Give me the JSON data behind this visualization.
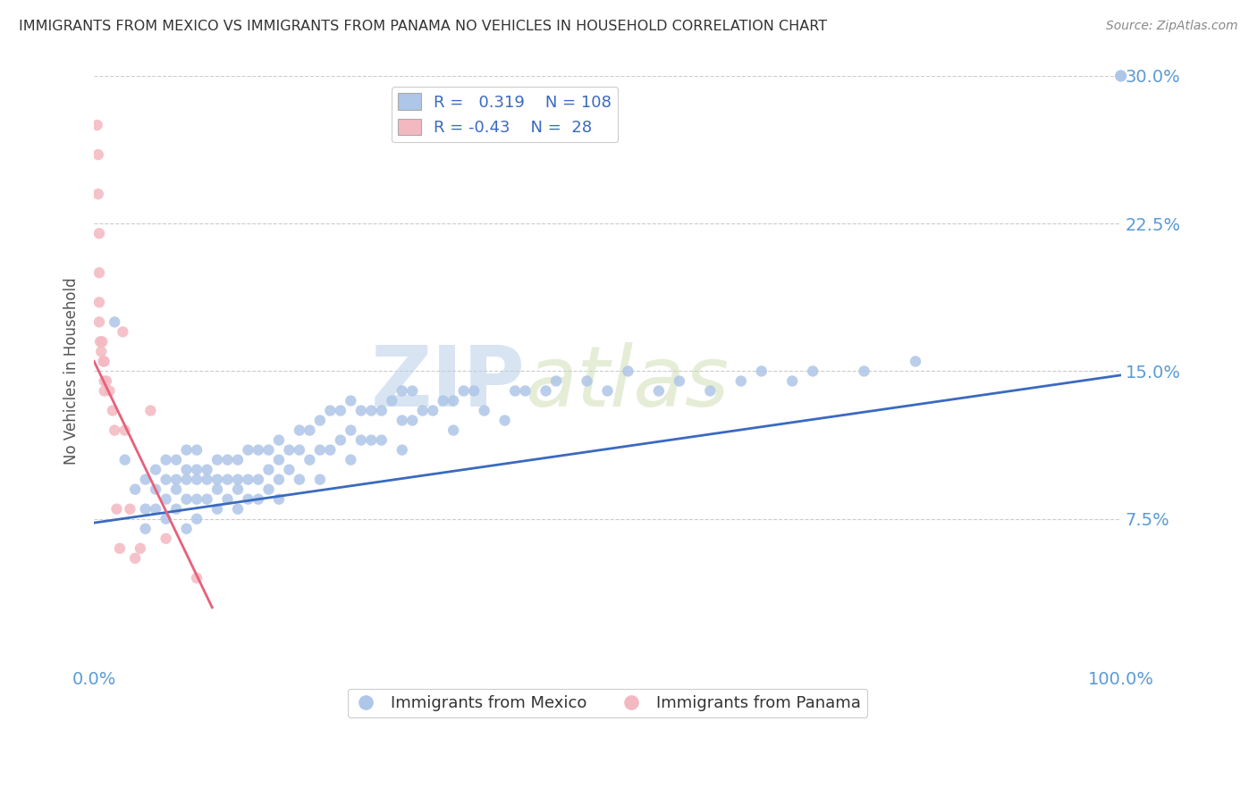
{
  "title": "IMMIGRANTS FROM MEXICO VS IMMIGRANTS FROM PANAMA NO VEHICLES IN HOUSEHOLD CORRELATION CHART",
  "source": "Source: ZipAtlas.com",
  "ylabel": "No Vehicles in Household",
  "xlim": [
    0,
    1.0
  ],
  "ylim": [
    0,
    0.3
  ],
  "yticks": [
    0.075,
    0.15,
    0.225,
    0.3
  ],
  "ytick_labels": [
    "7.5%",
    "15.0%",
    "22.5%",
    "30.0%"
  ],
  "xticks": [
    0.0,
    0.2,
    0.4,
    0.6,
    0.8,
    1.0
  ],
  "xtick_labels": [
    "0.0%",
    "",
    "",
    "",
    "",
    "100.0%"
  ],
  "mexico_R": 0.319,
  "mexico_N": 108,
  "panama_R": -0.43,
  "panama_N": 28,
  "mexico_color": "#aec6e8",
  "panama_color": "#f4b8c1",
  "mexico_line_color": "#3a6abf",
  "panama_line_color": "#e8607a",
  "grid_color": "#cccccc",
  "axis_label_color": "#5b9bd5",
  "title_color": "#333333",
  "watermark_zip": "ZIP",
  "watermark_atlas": "atlas",
  "mexico_x": [
    0.02,
    0.03,
    0.04,
    0.05,
    0.05,
    0.05,
    0.06,
    0.06,
    0.06,
    0.07,
    0.07,
    0.07,
    0.07,
    0.08,
    0.08,
    0.08,
    0.08,
    0.09,
    0.09,
    0.09,
    0.09,
    0.09,
    0.1,
    0.1,
    0.1,
    0.1,
    0.1,
    0.11,
    0.11,
    0.11,
    0.12,
    0.12,
    0.12,
    0.12,
    0.13,
    0.13,
    0.13,
    0.14,
    0.14,
    0.14,
    0.14,
    0.15,
    0.15,
    0.15,
    0.16,
    0.16,
    0.16,
    0.17,
    0.17,
    0.17,
    0.18,
    0.18,
    0.18,
    0.18,
    0.19,
    0.19,
    0.2,
    0.2,
    0.2,
    0.21,
    0.21,
    0.22,
    0.22,
    0.22,
    0.23,
    0.23,
    0.24,
    0.24,
    0.25,
    0.25,
    0.25,
    0.26,
    0.26,
    0.27,
    0.27,
    0.28,
    0.28,
    0.29,
    0.3,
    0.3,
    0.3,
    0.31,
    0.31,
    0.32,
    0.33,
    0.34,
    0.35,
    0.35,
    0.36,
    0.37,
    0.38,
    0.4,
    0.41,
    0.42,
    0.44,
    0.45,
    0.48,
    0.5,
    0.52,
    0.55,
    0.57,
    0.6,
    0.63,
    0.65,
    0.68,
    0.7,
    0.75,
    0.8
  ],
  "mexico_y": [
    0.175,
    0.105,
    0.09,
    0.095,
    0.08,
    0.07,
    0.1,
    0.09,
    0.08,
    0.105,
    0.095,
    0.085,
    0.075,
    0.105,
    0.095,
    0.09,
    0.08,
    0.11,
    0.1,
    0.095,
    0.085,
    0.07,
    0.11,
    0.1,
    0.095,
    0.085,
    0.075,
    0.1,
    0.095,
    0.085,
    0.105,
    0.095,
    0.09,
    0.08,
    0.105,
    0.095,
    0.085,
    0.105,
    0.095,
    0.09,
    0.08,
    0.11,
    0.095,
    0.085,
    0.11,
    0.095,
    0.085,
    0.11,
    0.1,
    0.09,
    0.115,
    0.105,
    0.095,
    0.085,
    0.11,
    0.1,
    0.12,
    0.11,
    0.095,
    0.12,
    0.105,
    0.125,
    0.11,
    0.095,
    0.13,
    0.11,
    0.13,
    0.115,
    0.135,
    0.12,
    0.105,
    0.13,
    0.115,
    0.13,
    0.115,
    0.13,
    0.115,
    0.135,
    0.14,
    0.125,
    0.11,
    0.14,
    0.125,
    0.13,
    0.13,
    0.135,
    0.135,
    0.12,
    0.14,
    0.14,
    0.13,
    0.125,
    0.14,
    0.14,
    0.14,
    0.145,
    0.145,
    0.14,
    0.15,
    0.14,
    0.145,
    0.14,
    0.145,
    0.15,
    0.145,
    0.15,
    0.15,
    0.155
  ],
  "panama_x": [
    0.003,
    0.004,
    0.004,
    0.005,
    0.005,
    0.005,
    0.005,
    0.006,
    0.007,
    0.008,
    0.009,
    0.01,
    0.01,
    0.01,
    0.012,
    0.015,
    0.018,
    0.02,
    0.022,
    0.025,
    0.028,
    0.03,
    0.035,
    0.04,
    0.045,
    0.055,
    0.07,
    0.1
  ],
  "panama_y": [
    0.275,
    0.26,
    0.24,
    0.22,
    0.2,
    0.185,
    0.175,
    0.165,
    0.16,
    0.165,
    0.155,
    0.155,
    0.145,
    0.14,
    0.145,
    0.14,
    0.13,
    0.12,
    0.08,
    0.06,
    0.17,
    0.12,
    0.08,
    0.055,
    0.06,
    0.13,
    0.065,
    0.045
  ],
  "mexico_line_x0": 0.0,
  "mexico_line_y0": 0.073,
  "mexico_line_x1": 1.0,
  "mexico_line_y1": 0.148,
  "panama_line_x0": 0.0,
  "panama_line_y0": 0.155,
  "panama_line_x1": 0.115,
  "panama_line_y1": 0.03
}
